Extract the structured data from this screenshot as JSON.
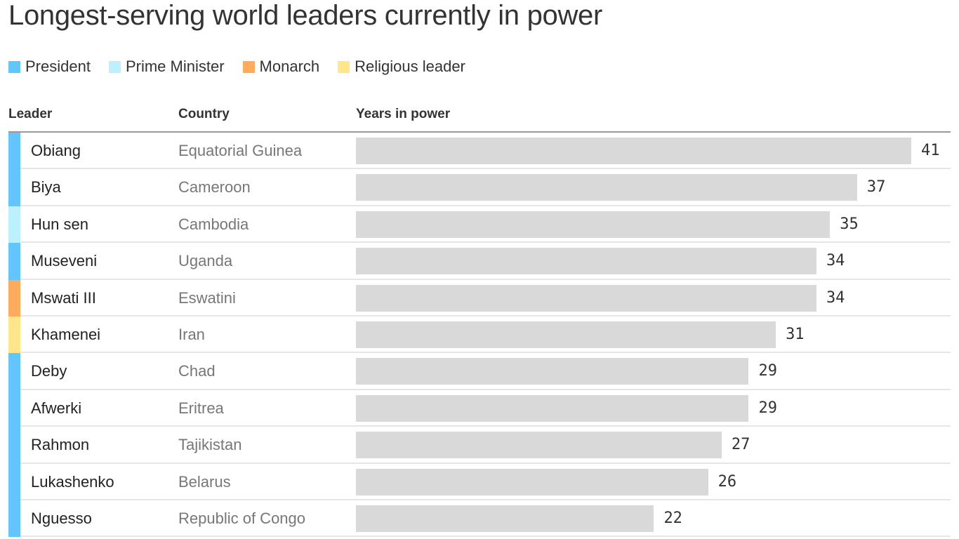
{
  "chart_data": {
    "type": "bar",
    "title": "Longest-serving world leaders currently in power",
    "columns": {
      "leader": "Leader",
      "country": "Country",
      "value": "Years in power"
    },
    "legend": [
      {
        "name": "President",
        "color": "#62c6fd"
      },
      {
        "name": "Prime Minister",
        "color": "#bdf0ff"
      },
      {
        "name": "Monarch",
        "color": "#ffab5e"
      },
      {
        "name": "Religious leader",
        "color": "#ffe68a"
      }
    ],
    "legend_placement": "top-left",
    "xlim": [
      0,
      41
    ],
    "rows": [
      {
        "leader": "Obiang",
        "country": "Equatorial Guinea",
        "role": "President",
        "years": 41
      },
      {
        "leader": "Biya",
        "country": "Cameroon",
        "role": "President",
        "years": 37
      },
      {
        "leader": "Hun sen",
        "country": "Cambodia",
        "role": "Prime Minister",
        "years": 35
      },
      {
        "leader": "Museveni",
        "country": "Uganda",
        "role": "President",
        "years": 34
      },
      {
        "leader": "Mswati III",
        "country": "Eswatini",
        "role": "Monarch",
        "years": 34
      },
      {
        "leader": "Khamenei",
        "country": "Iran",
        "role": "Religious leader",
        "years": 31
      },
      {
        "leader": "Deby",
        "country": "Chad",
        "role": "President",
        "years": 29
      },
      {
        "leader": "Afwerki",
        "country": "Eritrea",
        "role": "President",
        "years": 29
      },
      {
        "leader": "Rahmon",
        "country": "Tajikistan",
        "role": "President",
        "years": 27
      },
      {
        "leader": "Lukashenko",
        "country": "Belarus",
        "role": "President",
        "years": 26
      },
      {
        "leader": "Nguesso",
        "country": "Republic of Congo",
        "role": "President",
        "years": 22
      }
    ]
  }
}
